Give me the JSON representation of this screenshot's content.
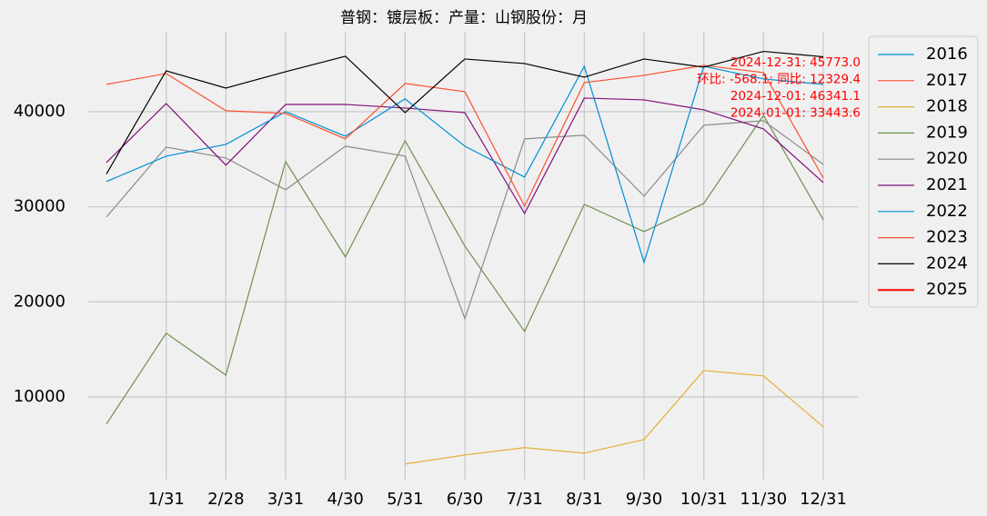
{
  "chart_data": {
    "type": "line",
    "title": "普钢：镀层板：产量：山钢股份：月",
    "categories": [
      null,
      "1/31",
      "2/28",
      "3/31",
      "4/30",
      "5/31",
      "6/30",
      "7/31",
      "8/31",
      "9/30",
      "10/31",
      "11/30",
      "12/31"
    ],
    "ylim": [
      1300,
      48400
    ],
    "yticks": [
      10000,
      20000,
      30000,
      40000
    ],
    "grid": true,
    "legend": "outside right",
    "series": [
      {
        "name": "2016",
        "color": "#008fd5",
        "values": [
          null,
          null,
          null,
          null,
          null,
          null,
          null,
          null,
          null,
          null,
          null,
          null,
          null
        ]
      },
      {
        "name": "2017",
        "color": "#fc4f30",
        "values": [
          null,
          null,
          null,
          null,
          null,
          null,
          null,
          null,
          null,
          null,
          null,
          null,
          null
        ]
      },
      {
        "name": "2018",
        "color": "#e5ae38",
        "values": [
          null,
          null,
          null,
          null,
          null,
          2950,
          3900,
          4670,
          4090,
          5520,
          12780,
          12210,
          6860
        ]
      },
      {
        "name": "2019",
        "color": "#6d904f",
        "values": [
          7150,
          16700,
          12300,
          34750,
          24720,
          36940,
          25870,
          16890,
          30260,
          27390,
          30350,
          39620,
          28640
        ]
      },
      {
        "name": "2020",
        "color": "#8b8b8b",
        "values": [
          28920,
          36280,
          35130,
          31790,
          36370,
          35320,
          18230,
          37140,
          37520,
          31120,
          38570,
          39050,
          34460
        ]
      },
      {
        "name": "2021",
        "color": "#810f7c",
        "values": [
          34650,
          40860,
          34370,
          40760,
          40760,
          40380,
          39900,
          29300,
          41430,
          41240,
          40190,
          38190,
          32550
        ]
      },
      {
        "name": "2022",
        "color": "#008fd5",
        "values": [
          32650,
          35320,
          36560,
          40000,
          37420,
          41340,
          36370,
          33120,
          44780,
          24150,
          44780,
          43440,
          42870
        ]
      },
      {
        "name": "2023",
        "color": "#fc4f30",
        "values": [
          42870,
          44010,
          40100,
          39810,
          37140,
          42960,
          42100,
          30070,
          43060,
          43820,
          44870,
          44110,
          33030
        ]
      },
      {
        "name": "2024",
        "color": "#000000",
        "values": [
          33443.6,
          44300,
          42480,
          44200,
          45830,
          39900,
          45540,
          45060,
          43630,
          45540,
          44680,
          46341.1,
          45773.0
        ]
      },
      {
        "name": "2025",
        "color": "#ff0000",
        "values": [
          null,
          null,
          null,
          null,
          null,
          null,
          null,
          null,
          null,
          null,
          null,
          null,
          null
        ]
      }
    ],
    "annotations": [
      "2024-12-31: 45773.0",
      "环比: -568.1; 同比: 12329.4",
      "2024-12-01: 46341.1",
      "2024-01-01: 33443.6"
    ],
    "annotation_color": "#ff0000"
  }
}
